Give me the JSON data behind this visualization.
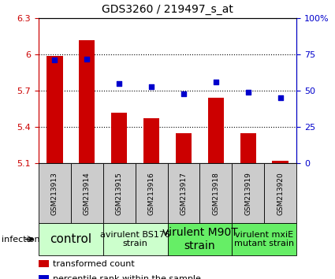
{
  "title": "GDS3260 / 219497_s_at",
  "samples": [
    "GSM213913",
    "GSM213914",
    "GSM213915",
    "GSM213916",
    "GSM213917",
    "GSM213918",
    "GSM213919",
    "GSM213920"
  ],
  "bar_values": [
    5.99,
    6.12,
    5.52,
    5.47,
    5.35,
    5.64,
    5.35,
    5.12
  ],
  "percentile_values": [
    71,
    72,
    55,
    53,
    48,
    56,
    49,
    45
  ],
  "ylim_left": [
    5.1,
    6.3
  ],
  "ylim_right": [
    0,
    100
  ],
  "yticks_left": [
    5.1,
    5.4,
    5.7,
    6.0,
    6.3
  ],
  "yticks_right": [
    0,
    25,
    50,
    75,
    100
  ],
  "ytick_labels_left": [
    "5.1",
    "5.4",
    "5.7",
    "6",
    "6.3"
  ],
  "ytick_labels_right": [
    "0",
    "25",
    "50",
    "75",
    "100%"
  ],
  "hlines": [
    5.4,
    5.7,
    6.0
  ],
  "bar_color": "#cc0000",
  "dot_color": "#0000cc",
  "groups": [
    {
      "label": "control",
      "start": 0,
      "end": 2,
      "color": "#ccffcc",
      "fontsize": 11
    },
    {
      "label": "avirulent BS176\nstrain",
      "start": 2,
      "end": 4,
      "color": "#ccffcc",
      "fontsize": 8
    },
    {
      "label": "virulent M90T\nstrain",
      "start": 4,
      "end": 6,
      "color": "#66ee66",
      "fontsize": 10
    },
    {
      "label": "virulent mxiE\nmutant strain",
      "start": 6,
      "end": 8,
      "color": "#66ee66",
      "fontsize": 8
    }
  ],
  "infection_label": "infection",
  "legend_bar_label": "transformed count",
  "legend_dot_label": "percentile rank within the sample",
  "tick_color_left": "#cc0000",
  "tick_color_right": "#0000cc",
  "sample_box_color": "#cccccc",
  "bar_width": 0.5
}
